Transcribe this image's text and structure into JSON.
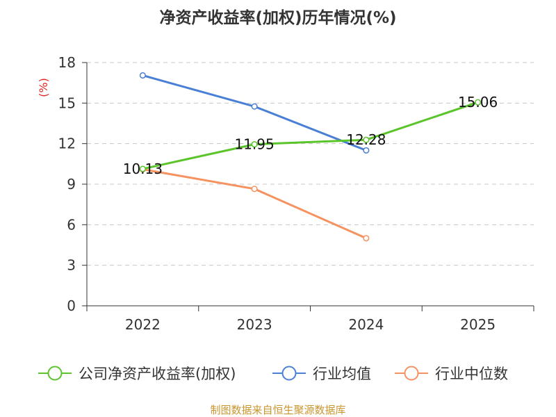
{
  "chart_data": {
    "type": "line",
    "title": "净资产收益率(加权)历年情况(%)",
    "ylabel": "(%)",
    "xlabel": "",
    "categories": [
      "2022",
      "2023",
      "2024",
      "2025"
    ],
    "ylim": [
      0,
      18
    ],
    "yticks": [
      0,
      3,
      6,
      9,
      12,
      15,
      18
    ],
    "grid": true,
    "legend_position": "bottom",
    "series": [
      {
        "name": "公司净资产收益率(加权)",
        "color": "#5ac42a",
        "values": [
          10.13,
          11.95,
          12.28,
          15.06
        ],
        "labels": [
          "10.13",
          "11.95",
          "12.28",
          "15.06"
        ]
      },
      {
        "name": "行业均值",
        "color": "#4a7fd6",
        "values": [
          17.05,
          14.75,
          11.5,
          null
        ],
        "labels": []
      },
      {
        "name": "行业中位数",
        "color": "#f59260",
        "values": [
          10.1,
          8.65,
          5.0,
          null
        ],
        "labels": []
      }
    ]
  },
  "source_text": "制图数据来自恒生聚源数据库"
}
